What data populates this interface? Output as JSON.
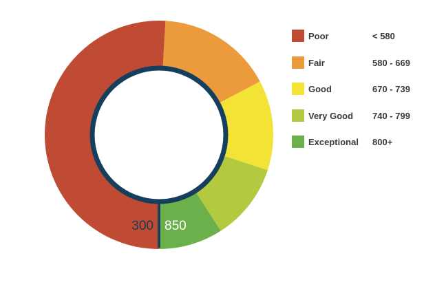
{
  "chart_data": {
    "type": "pie",
    "min_label": "300",
    "max_label": "850",
    "series": [
      {
        "name": "Poor",
        "range": "< 580",
        "from": 300,
        "to": 580,
        "color": "#bf4b34"
      },
      {
        "name": "Fair",
        "range": "580 - 669",
        "from": 580,
        "to": 670,
        "color": "#eb9b3b"
      },
      {
        "name": "Good",
        "range": "670 - 739",
        "from": 670,
        "to": 740,
        "color": "#f2e336"
      },
      {
        "name": "Very Good",
        "range": "740 - 799",
        "from": 740,
        "to": 800,
        "color": "#b2c940"
      },
      {
        "name": "Exceptional",
        "range": "800+",
        "from": 800,
        "to": 850,
        "color": "#6bb04a"
      }
    ],
    "legend_position": "right",
    "ring_color": "#153f5c",
    "min_label_color": "#1f3a52",
    "max_label_color": "#ffffff"
  }
}
